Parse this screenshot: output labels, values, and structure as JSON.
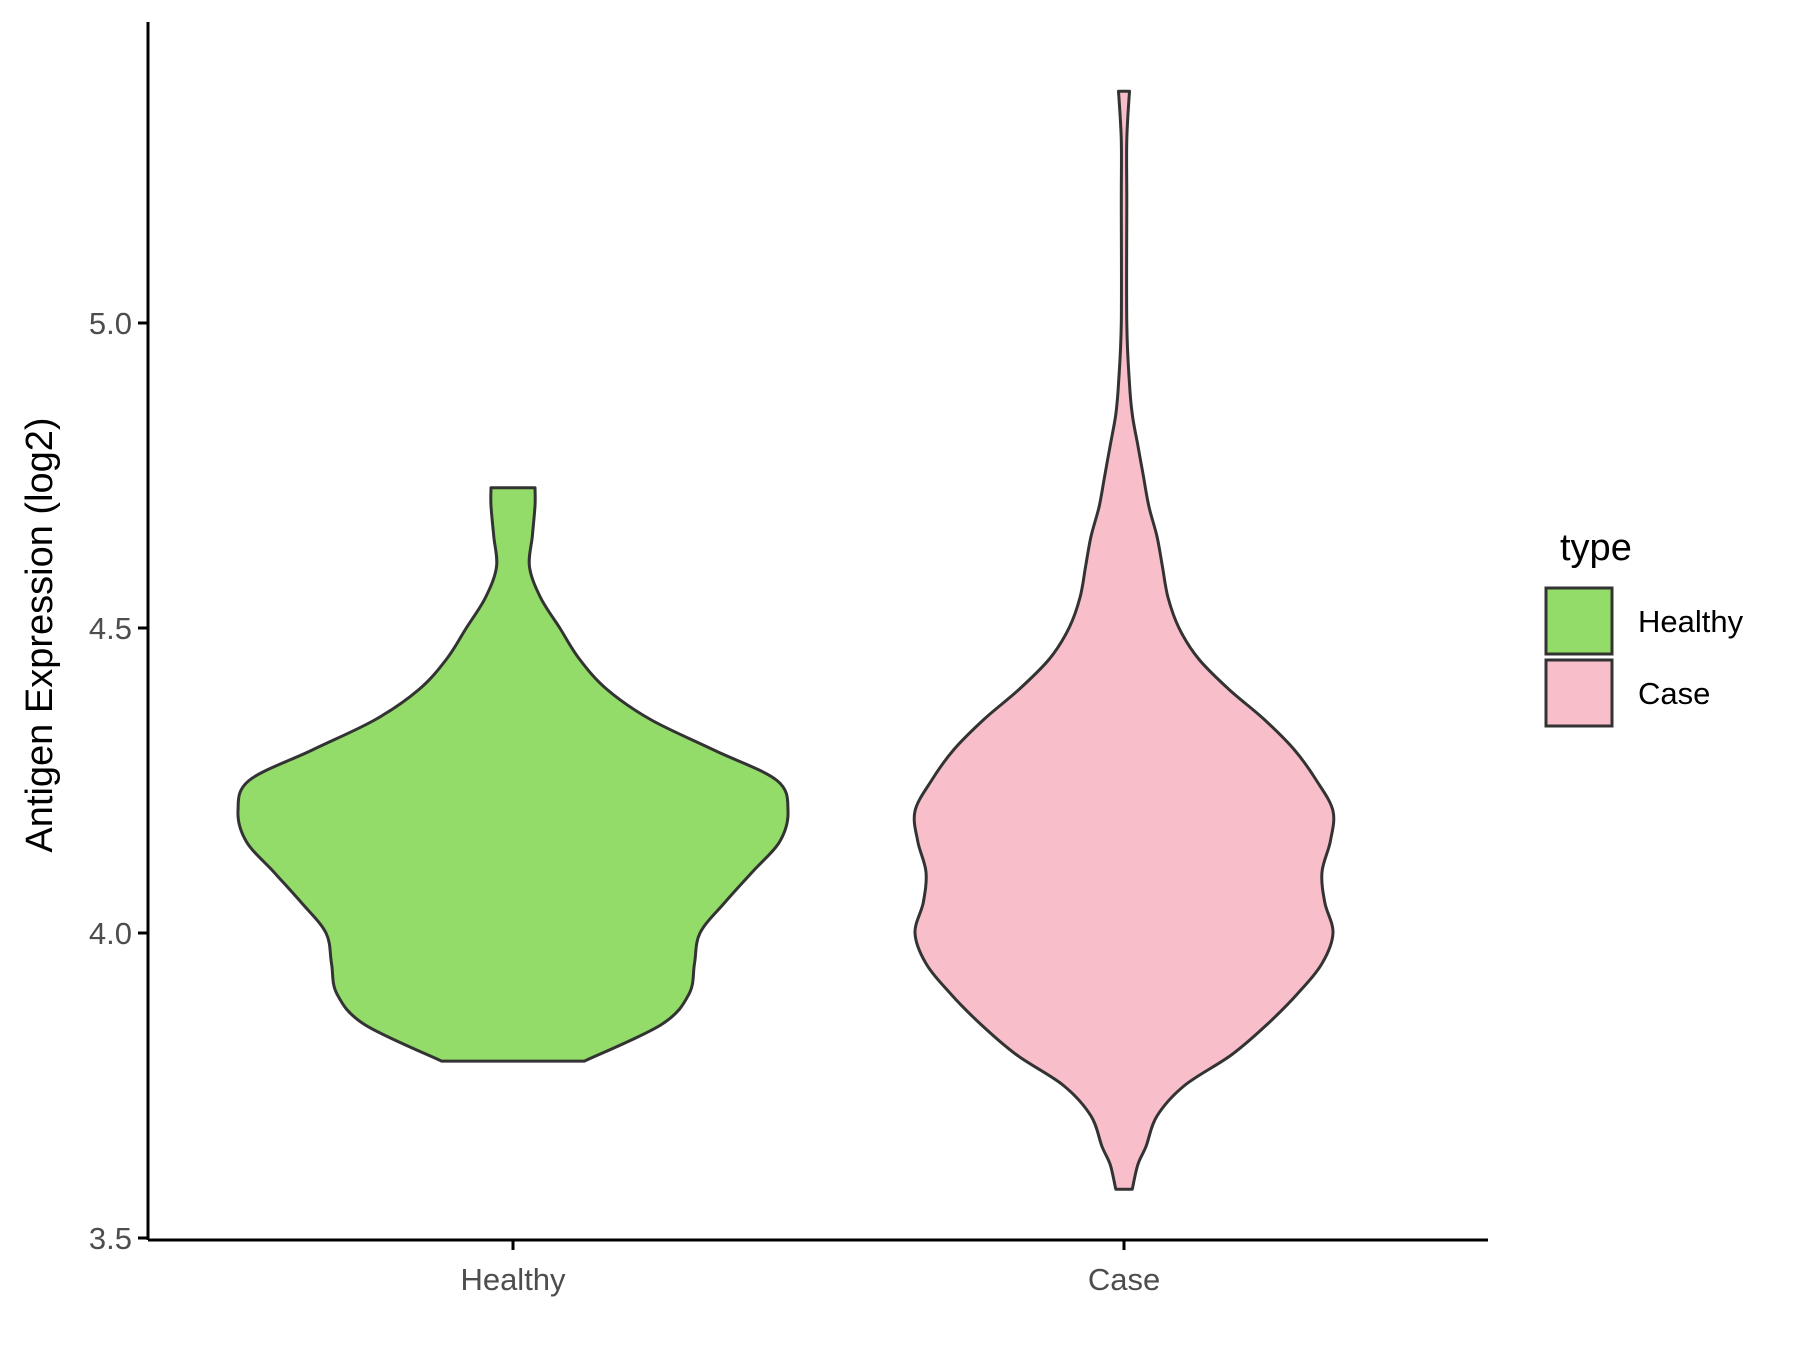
{
  "chart_data": {
    "type": "violin",
    "ylabel": "Antigen Expression (log2)",
    "xlabel": "",
    "ylim": [
      3.5,
      5.4
    ],
    "y_ticks": [
      3.5,
      4.0,
      4.5,
      5.0
    ],
    "y_tick_labels": [
      "3.5",
      "4.0",
      "4.5",
      "5.0"
    ],
    "categories": [
      "Healthy",
      "Case"
    ],
    "grid": false,
    "legend": {
      "title": "type",
      "placement": "right",
      "entries": [
        {
          "label": "Healthy",
          "color": "#93dc6a"
        },
        {
          "label": "Case",
          "color": "#f8bfcb"
        }
      ]
    },
    "series": [
      {
        "category": "Healthy",
        "color": "#93dc6a",
        "min": 3.79,
        "max": 4.73,
        "density_profile": [
          [
            3.79,
            0.26
          ],
          [
            3.85,
            0.54
          ],
          [
            3.9,
            0.64
          ],
          [
            3.95,
            0.66
          ],
          [
            4.0,
            0.68
          ],
          [
            4.05,
            0.77
          ],
          [
            4.1,
            0.87
          ],
          [
            4.15,
            0.97
          ],
          [
            4.2,
            1.0
          ],
          [
            4.25,
            0.96
          ],
          [
            4.3,
            0.73
          ],
          [
            4.35,
            0.5
          ],
          [
            4.4,
            0.34
          ],
          [
            4.45,
            0.24
          ],
          [
            4.5,
            0.17
          ],
          [
            4.55,
            0.1
          ],
          [
            4.6,
            0.06
          ],
          [
            4.65,
            0.07
          ],
          [
            4.7,
            0.08
          ],
          [
            4.73,
            0.08
          ]
        ]
      },
      {
        "category": "Case",
        "color": "#f8bfcb",
        "min": 3.58,
        "max": 5.38,
        "density_profile": [
          [
            3.58,
            0.03
          ],
          [
            3.62,
            0.05
          ],
          [
            3.65,
            0.08
          ],
          [
            3.7,
            0.12
          ],
          [
            3.75,
            0.22
          ],
          [
            3.8,
            0.39
          ],
          [
            3.85,
            0.52
          ],
          [
            3.9,
            0.63
          ],
          [
            3.95,
            0.72
          ],
          [
            4.0,
            0.76
          ],
          [
            4.05,
            0.73
          ],
          [
            4.1,
            0.72
          ],
          [
            4.15,
            0.75
          ],
          [
            4.2,
            0.76
          ],
          [
            4.25,
            0.7
          ],
          [
            4.3,
            0.62
          ],
          [
            4.35,
            0.51
          ],
          [
            4.4,
            0.38
          ],
          [
            4.45,
            0.27
          ],
          [
            4.5,
            0.2
          ],
          [
            4.55,
            0.16
          ],
          [
            4.6,
            0.14
          ],
          [
            4.65,
            0.12
          ],
          [
            4.7,
            0.09
          ],
          [
            4.75,
            0.07
          ],
          [
            4.8,
            0.05
          ],
          [
            4.85,
            0.03
          ],
          [
            4.9,
            0.02
          ],
          [
            5.0,
            0.01
          ],
          [
            5.2,
            0.01
          ],
          [
            5.3,
            0.01
          ],
          [
            5.38,
            0.02
          ]
        ]
      }
    ]
  }
}
